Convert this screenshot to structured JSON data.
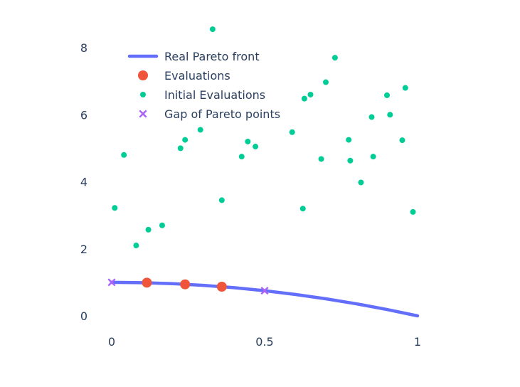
{
  "chart_data": {
    "type": "scatter",
    "title": "",
    "xlabel": "",
    "ylabel": "",
    "xlim": [
      -0.02,
      1.0
    ],
    "ylim": [
      -0.35,
      8.85
    ],
    "x_ticks": [
      {
        "value": 0,
        "label": "0"
      },
      {
        "value": 0.5,
        "label": "0.5"
      },
      {
        "value": 1,
        "label": "1"
      }
    ],
    "y_ticks": [
      {
        "value": 0,
        "label": "0"
      },
      {
        "value": 2,
        "label": "2"
      },
      {
        "value": 4,
        "label": "4"
      },
      {
        "value": 6,
        "label": "6"
      },
      {
        "value": 8,
        "label": "8"
      }
    ],
    "grid": false,
    "legend_position": "top-left",
    "series": [
      {
        "name": "Real Pareto front",
        "mode": "line",
        "color": "#636efa",
        "x": [
          0,
          0.1,
          0.2,
          0.3,
          0.4,
          0.5,
          0.6,
          0.7,
          0.8,
          0.9,
          1.0
        ],
        "y": [
          1.0,
          0.99,
          0.96,
          0.91,
          0.84,
          0.75,
          0.64,
          0.51,
          0.36,
          0.19,
          0.0
        ]
      },
      {
        "name": "Evaluations",
        "mode": "markers",
        "marker": "circle-large",
        "color": "#ef553b",
        "x": [
          0.115,
          0.24,
          0.36
        ],
        "y": [
          0.99,
          0.94,
          0.87
        ]
      },
      {
        "name": "Initial Evaluations",
        "mode": "markers",
        "marker": "circle-small",
        "color": "#00cc96",
        "x": [
          0.01,
          0.04,
          0.08,
          0.12,
          0.165,
          0.225,
          0.24,
          0.29,
          0.33,
          0.36,
          0.425,
          0.445,
          0.47,
          0.59,
          0.625,
          0.63,
          0.65,
          0.685,
          0.7,
          0.73,
          0.775,
          0.78,
          0.815,
          0.85,
          0.855,
          0.9,
          0.91,
          0.95,
          0.96,
          0.985
        ],
        "y": [
          3.22,
          4.8,
          2.1,
          2.57,
          2.7,
          5.0,
          5.25,
          5.55,
          8.55,
          3.45,
          4.75,
          5.2,
          5.05,
          5.48,
          3.2,
          6.48,
          6.6,
          4.68,
          6.97,
          7.7,
          5.25,
          4.63,
          3.98,
          5.93,
          4.75,
          6.58,
          6.0,
          5.24,
          6.8,
          3.1
        ]
      },
      {
        "name": "Gap of Pareto points",
        "mode": "markers",
        "marker": "x",
        "color": "#ab63fa",
        "x": [
          0.0,
          0.5
        ],
        "y": [
          1.0,
          0.75
        ]
      }
    ]
  }
}
